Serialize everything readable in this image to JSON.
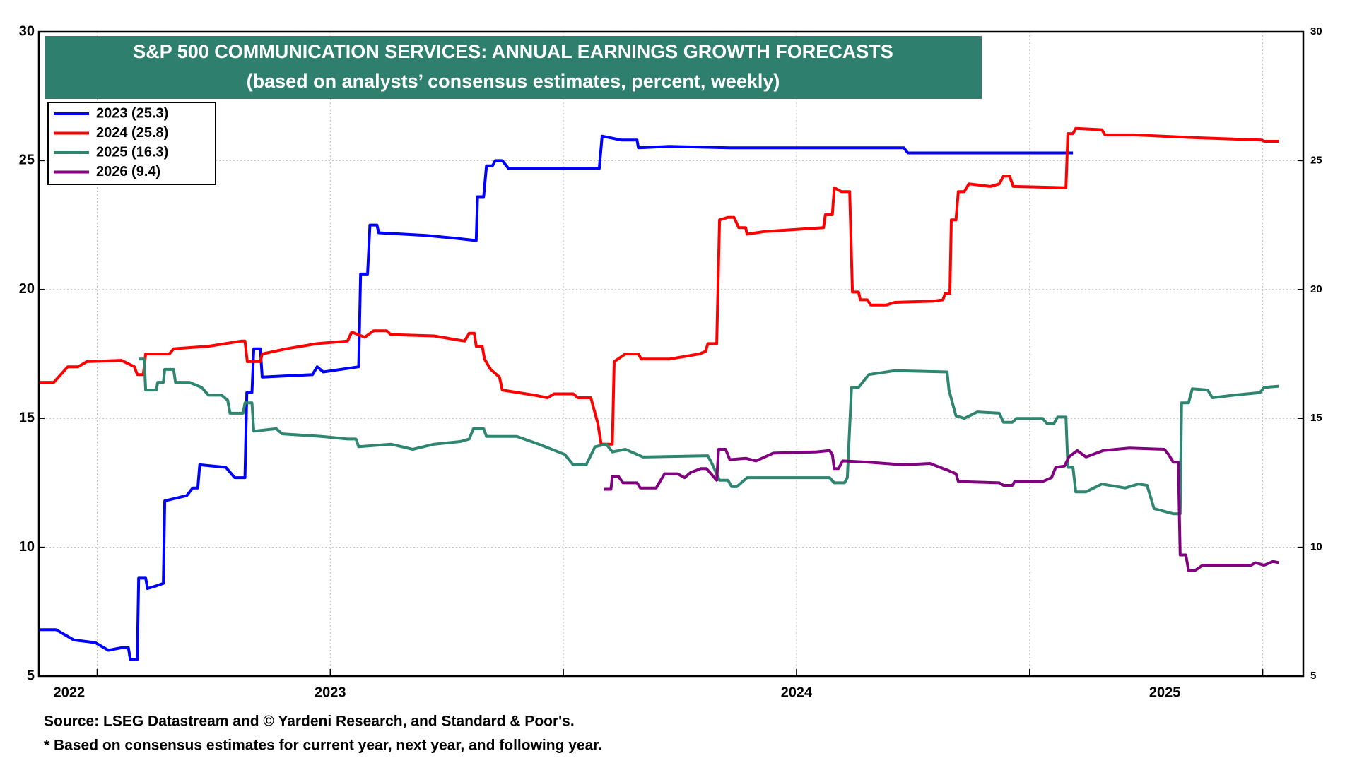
{
  "chart_data": {
    "type": "line",
    "title": "S&P 500 COMMUNICATION SERVICES: ANNUAL EARNINGS GROWTH FORECASTS",
    "subtitle": "(based on analysts’ consensus estimates, percent, weekly)",
    "source": "Source: LSEG Datastream and © Yardeni Research, and Standard & Poor's.",
    "note": "* Based on consensus estimates for current year, next year, and following year.",
    "xlim": [
      2022.875,
      2025.587
    ],
    "xticks": [
      {
        "value": 2022.94,
        "label": "2022"
      },
      {
        "value": 2023.5,
        "label": "2023"
      },
      {
        "value": 2024.5,
        "label": "2024"
      },
      {
        "value": 2025.29,
        "label": "2025"
      }
    ],
    "xgrid": [
      2023,
      2023.5,
      2024,
      2024.5,
      2025,
      2025.5
    ],
    "ylim": [
      5,
      30
    ],
    "yticks": [
      5,
      10,
      15,
      20,
      25,
      30
    ],
    "y2lim": [
      5,
      30
    ],
    "y2ticks": [
      5,
      10,
      15,
      20,
      25,
      30
    ],
    "grid": true,
    "legend": "upper left",
    "series": [
      {
        "name": "2023 (25.3)",
        "color": "#0000ff",
        "x": [
          2022.875,
          2022.912,
          2022.95,
          2022.996,
          2023.024,
          2023.052,
          2023.067,
          2023.071,
          2023.086,
          2023.089,
          2023.104,
          2023.108,
          2023.127,
          2023.142,
          2023.145,
          2023.192,
          2023.205,
          2023.216,
          2023.22,
          2023.276,
          2023.295,
          2023.317,
          2023.321,
          2023.332,
          2023.336,
          2023.35,
          2023.354,
          2023.462,
          2023.472,
          2023.485,
          2023.561,
          2023.565,
          2023.58,
          2023.585,
          2023.6,
          2023.604,
          2023.705,
          2023.761,
          2023.813,
          2023.816,
          2023.829,
          2023.835,
          2023.848,
          2023.854,
          2023.869,
          2023.882,
          2024.077,
          2024.083,
          2024.124,
          2024.158,
          2024.161,
          2024.227,
          2024.357,
          2024.73,
          2024.739,
          2025.093
        ],
        "values": [
          6.8,
          6.8,
          6.4,
          6.3,
          6.0,
          6.1,
          6.1,
          5.65,
          5.65,
          8.8,
          8.8,
          8.4,
          8.5,
          8.6,
          11.8,
          12.0,
          12.3,
          12.3,
          13.2,
          13.1,
          12.7,
          12.7,
          16.0,
          16.0,
          17.7,
          17.7,
          16.6,
          16.7,
          17.0,
          16.8,
          17.0,
          20.6,
          20.6,
          22.5,
          22.5,
          22.2,
          22.1,
          22.0,
          21.9,
          23.6,
          23.6,
          24.8,
          24.8,
          25.0,
          25.0,
          24.7,
          24.7,
          25.95,
          25.8,
          25.8,
          25.5,
          25.55,
          25.5,
          25.5,
          25.3,
          25.3
        ]
      },
      {
        "name": "2024 (25.8)",
        "color": "#ff0000",
        "x": [
          2022.875,
          2022.907,
          2022.937,
          2022.959,
          2022.978,
          2023.052,
          2023.08,
          2023.086,
          2023.099,
          2023.104,
          2023.155,
          2023.164,
          2023.239,
          2023.309,
          2023.317,
          2023.322,
          2023.35,
          2023.354,
          2023.406,
          2023.472,
          2023.537,
          2023.546,
          2023.574,
          2023.593,
          2023.621,
          2023.63,
          2023.723,
          2023.788,
          2023.798,
          2023.809,
          2023.813,
          2023.826,
          2023.831,
          2023.844,
          2023.863,
          2023.869,
          2023.938,
          2023.966,
          2023.98,
          2024.021,
          2024.031,
          2024.059,
          2024.074,
          2024.081,
          2024.105,
          2024.109,
          2024.133,
          2024.161,
          2024.167,
          2024.227,
          2024.292,
          2024.305,
          2024.31,
          2024.329,
          2024.335,
          2024.353,
          2024.366,
          2024.376,
          2024.391,
          2024.394,
          2024.432,
          2024.558,
          2024.562,
          2024.577,
          2024.581,
          2024.596,
          2024.614,
          2024.62,
          2024.633,
          2024.637,
          2024.652,
          2024.659,
          2024.693,
          2024.711,
          2024.795,
          2024.814,
          2024.819,
          2024.829,
          2024.832,
          2024.842,
          2024.847,
          2024.86,
          2024.87,
          2024.916,
          2024.935,
          2024.944,
          2024.957,
          2024.965,
          2025.078,
          2025.082,
          2025.093,
          2025.099,
          2025.155,
          2025.162,
          2025.224,
          2025.345,
          2025.498,
          2025.503,
          2025.535
        ],
        "values": [
          16.4,
          16.4,
          17.0,
          17.0,
          17.2,
          17.25,
          17.0,
          16.7,
          16.7,
          17.5,
          17.5,
          17.7,
          17.8,
          18.0,
          18.0,
          17.2,
          17.2,
          17.5,
          17.7,
          17.9,
          18.0,
          18.35,
          18.15,
          18.4,
          18.4,
          18.25,
          18.2,
          18.0,
          18.3,
          18.3,
          17.8,
          17.8,
          17.3,
          16.9,
          16.6,
          16.1,
          15.9,
          15.8,
          15.95,
          15.95,
          15.8,
          15.8,
          14.8,
          14.0,
          14.0,
          17.2,
          17.5,
          17.5,
          17.3,
          17.3,
          17.5,
          17.6,
          17.9,
          17.9,
          22.7,
          22.8,
          22.8,
          22.4,
          22.4,
          22.15,
          22.25,
          22.4,
          22.9,
          22.9,
          23.95,
          23.8,
          23.8,
          19.9,
          19.9,
          19.6,
          19.6,
          19.4,
          19.4,
          19.5,
          19.55,
          19.6,
          19.85,
          19.85,
          22.7,
          22.7,
          23.8,
          23.8,
          24.1,
          24.0,
          24.1,
          24.4,
          24.4,
          24.0,
          23.95,
          26.05,
          26.05,
          26.25,
          26.2,
          26.0,
          26.0,
          25.9,
          25.8,
          25.75,
          25.75
        ]
      },
      {
        "name": "2025 (16.3)",
        "color": "#2e8570",
        "x": [
          2023.089,
          2023.101,
          2023.104,
          2023.127,
          2023.13,
          2023.142,
          2023.145,
          2023.164,
          2023.168,
          2023.198,
          2023.224,
          2023.239,
          2023.267,
          2023.28,
          2023.285,
          2023.313,
          2023.317,
          2023.332,
          2023.336,
          2023.384,
          2023.397,
          2023.481,
          2023.537,
          2023.555,
          2023.561,
          2023.63,
          2023.677,
          2023.723,
          2023.779,
          2023.798,
          2023.807,
          2023.829,
          2023.835,
          2023.9,
          2023.947,
          2024.003,
          2024.021,
          2024.049,
          2024.068,
          2024.092,
          2024.105,
          2024.133,
          2024.171,
          2024.31,
          2024.32,
          2024.335,
          2024.353,
          2024.361,
          2024.372,
          2024.394,
          2024.571,
          2024.581,
          2024.603,
          2024.609,
          2024.618,
          2024.633,
          2024.655,
          2024.711,
          2024.823,
          2024.827,
          2024.842,
          2024.86,
          2024.888,
          2024.935,
          2024.944,
          2024.963,
          2024.972,
          2025.028,
          2025.037,
          2025.052,
          2025.06,
          2025.078,
          2025.082,
          2025.093,
          2025.099,
          2025.121,
          2025.155,
          2025.205,
          2025.233,
          2025.252,
          2025.267,
          2025.308,
          2025.323,
          2025.326,
          2025.341,
          2025.349,
          2025.382,
          2025.392,
          2025.438,
          2025.494,
          2025.503,
          2025.535
        ],
        "values": [
          17.3,
          17.3,
          16.1,
          16.1,
          16.4,
          16.4,
          16.9,
          16.9,
          16.4,
          16.4,
          16.2,
          15.9,
          15.9,
          15.7,
          15.2,
          15.2,
          15.6,
          15.6,
          14.5,
          14.6,
          14.4,
          14.3,
          14.2,
          14.2,
          13.9,
          14.0,
          13.8,
          14.0,
          14.1,
          14.2,
          14.6,
          14.6,
          14.3,
          14.3,
          14.0,
          13.6,
          13.2,
          13.2,
          13.9,
          14.0,
          13.7,
          13.8,
          13.5,
          13.55,
          13.2,
          12.6,
          12.6,
          12.35,
          12.35,
          12.7,
          12.7,
          12.5,
          12.5,
          12.7,
          16.2,
          16.2,
          16.7,
          16.85,
          16.8,
          16.1,
          15.1,
          15.0,
          15.25,
          15.2,
          14.85,
          14.85,
          15.0,
          15.0,
          14.8,
          14.8,
          15.05,
          15.05,
          13.1,
          13.1,
          12.15,
          12.15,
          12.45,
          12.3,
          12.45,
          12.4,
          11.5,
          11.3,
          11.3,
          15.6,
          15.6,
          16.15,
          16.1,
          15.8,
          15.9,
          16.0,
          16.2,
          16.25
        ]
      },
      {
        "name": "2026 (9.4)",
        "color": "#800080",
        "x": [
          2024.087,
          2024.102,
          2024.105,
          2024.118,
          2024.128,
          2024.158,
          2024.165,
          2024.199,
          2024.217,
          2024.245,
          2024.26,
          2024.273,
          2024.295,
          2024.307,
          2024.329,
          2024.333,
          2024.348,
          2024.357,
          2024.391,
          2024.413,
          2024.45,
          2024.543,
          2024.571,
          2024.577,
          2024.581,
          2024.59,
          2024.599,
          2024.655,
          2024.73,
          2024.786,
          2024.823,
          2024.842,
          2024.847,
          2024.935,
          2024.944,
          2024.963,
          2024.968,
          2025.028,
          2025.047,
          2025.056,
          2025.075,
          2025.084,
          2025.102,
          2025.121,
          2025.158,
          2025.214,
          2025.289,
          2025.298,
          2025.308,
          2025.319,
          2025.323,
          2025.335,
          2025.341,
          2025.355,
          2025.371,
          2025.475,
          2025.484,
          2025.503,
          2025.522,
          2025.535
        ],
        "values": [
          12.25,
          12.25,
          12.75,
          12.75,
          12.5,
          12.5,
          12.3,
          12.3,
          12.85,
          12.85,
          12.7,
          12.9,
          13.05,
          13.05,
          12.6,
          13.8,
          13.8,
          13.4,
          13.45,
          13.35,
          13.65,
          13.7,
          13.75,
          13.6,
          13.05,
          13.05,
          13.35,
          13.3,
          13.2,
          13.25,
          13.0,
          12.85,
          12.55,
          12.5,
          12.4,
          12.4,
          12.55,
          12.55,
          12.7,
          13.1,
          13.15,
          13.5,
          13.75,
          13.5,
          13.75,
          13.85,
          13.8,
          13.6,
          13.3,
          13.3,
          9.7,
          9.7,
          9.1,
          9.1,
          9.3,
          9.3,
          9.4,
          9.3,
          9.45,
          9.4
        ]
      }
    ]
  }
}
